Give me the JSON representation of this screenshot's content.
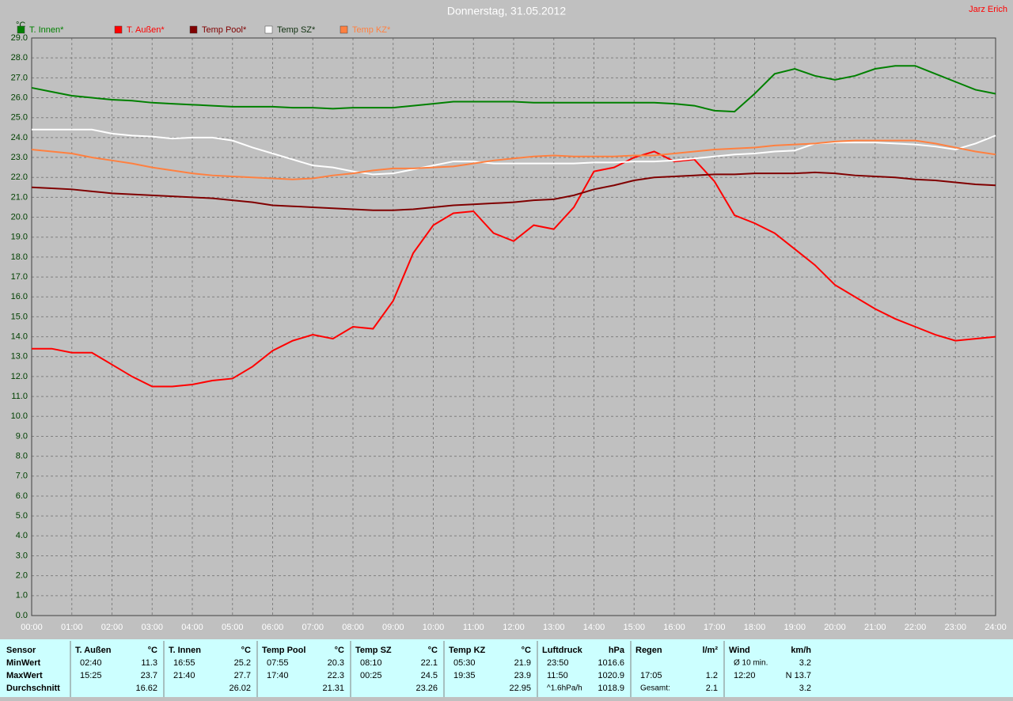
{
  "chart_data": {
    "type": "line",
    "title": "Donnerstag, 31.05.2012",
    "corner_text": "Jarz Erich",
    "y_label": "°C",
    "x": [
      0,
      0.5,
      1,
      1.5,
      2,
      2.5,
      3,
      3.5,
      4,
      4.5,
      5,
      5.5,
      6,
      6.5,
      7,
      7.5,
      8,
      8.5,
      9,
      9.5,
      10,
      10.5,
      11,
      11.5,
      12,
      12.5,
      13,
      13.5,
      14,
      14.5,
      15,
      15.5,
      16,
      16.5,
      17,
      17.5,
      18,
      18.5,
      19,
      19.5,
      20,
      20.5,
      21,
      21.5,
      22,
      22.5,
      23,
      23.5,
      24
    ],
    "series": [
      {
        "name": "T. Innen*",
        "color": "#008000",
        "values": [
          26.5,
          26.3,
          26.1,
          26.0,
          25.9,
          25.85,
          25.75,
          25.7,
          25.65,
          25.6,
          25.55,
          25.55,
          25.55,
          25.5,
          25.5,
          25.45,
          25.5,
          25.5,
          25.5,
          25.6,
          25.7,
          25.8,
          25.8,
          25.8,
          25.8,
          25.75,
          25.75,
          25.75,
          25.75,
          25.75,
          25.75,
          25.75,
          25.7,
          25.6,
          25.35,
          25.3,
          26.2,
          27.2,
          27.45,
          27.1,
          26.9,
          27.1,
          27.45,
          27.6,
          27.6,
          27.2,
          26.8,
          26.4,
          26.2
        ]
      },
      {
        "name": "T. Außen*",
        "color": "#ff0000",
        "values": [
          13.4,
          13.4,
          13.2,
          13.2,
          12.6,
          12.0,
          11.5,
          11.5,
          11.6,
          11.8,
          11.9,
          12.5,
          13.3,
          13.8,
          14.1,
          13.9,
          14.5,
          14.4,
          15.8,
          18.2,
          19.6,
          20.2,
          20.3,
          19.2,
          18.8,
          19.6,
          19.4,
          20.5,
          22.3,
          22.5,
          23.0,
          23.3,
          22.8,
          22.9,
          21.8,
          20.1,
          19.7,
          19.2,
          18.4,
          17.6,
          16.6,
          16.0,
          15.4,
          14.9,
          14.5,
          14.1,
          13.8,
          13.9,
          14.0
        ]
      },
      {
        "name": "Temp Pool*",
        "color": "#800000",
        "values": [
          21.5,
          21.45,
          21.4,
          21.3,
          21.2,
          21.15,
          21.1,
          21.05,
          21.0,
          20.95,
          20.85,
          20.75,
          20.6,
          20.55,
          20.5,
          20.45,
          20.4,
          20.35,
          20.35,
          20.4,
          20.5,
          20.6,
          20.65,
          20.7,
          20.75,
          20.85,
          20.9,
          21.1,
          21.4,
          21.6,
          21.85,
          22.0,
          22.05,
          22.1,
          22.15,
          22.15,
          22.2,
          22.2,
          22.2,
          22.25,
          22.2,
          22.1,
          22.05,
          22.0,
          21.9,
          21.85,
          21.75,
          21.65,
          21.6
        ]
      },
      {
        "name": "Temp SZ*",
        "color": "#ffffff",
        "values": [
          24.4,
          24.4,
          24.4,
          24.4,
          24.2,
          24.1,
          24.05,
          23.95,
          24.0,
          24.0,
          23.85,
          23.5,
          23.2,
          22.9,
          22.6,
          22.5,
          22.3,
          22.15,
          22.2,
          22.4,
          22.6,
          22.8,
          22.8,
          22.7,
          22.7,
          22.7,
          22.7,
          22.7,
          22.75,
          22.75,
          22.8,
          22.8,
          22.85,
          22.95,
          23.05,
          23.15,
          23.2,
          23.3,
          23.35,
          23.7,
          23.75,
          23.75,
          23.75,
          23.7,
          23.65,
          23.55,
          23.4,
          23.7,
          24.1
        ]
      },
      {
        "name": "Temp KZ*",
        "color": "#ff8040",
        "values": [
          23.4,
          23.3,
          23.2,
          23.0,
          22.85,
          22.7,
          22.5,
          22.35,
          22.2,
          22.1,
          22.05,
          22.0,
          21.95,
          21.9,
          21.95,
          22.1,
          22.2,
          22.35,
          22.45,
          22.45,
          22.5,
          22.55,
          22.7,
          22.85,
          22.95,
          23.05,
          23.1,
          23.05,
          23.05,
          23.05,
          23.1,
          23.1,
          23.2,
          23.3,
          23.4,
          23.45,
          23.5,
          23.6,
          23.65,
          23.7,
          23.8,
          23.85,
          23.85,
          23.85,
          23.85,
          23.7,
          23.5,
          23.3,
          23.15
        ]
      }
    ],
    "xlim": [
      0,
      24
    ],
    "ylim": [
      0,
      29
    ],
    "grid": true,
    "xticks": [
      {
        "value": 0,
        "label": "00:00"
      },
      {
        "value": 1,
        "label": "01:00"
      },
      {
        "value": 2,
        "label": "02:00"
      },
      {
        "value": 3,
        "label": "03:00"
      },
      {
        "value": 4,
        "label": "04:00"
      },
      {
        "value": 5,
        "label": "05:00"
      },
      {
        "value": 6,
        "label": "06:00"
      },
      {
        "value": 7,
        "label": "07:00"
      },
      {
        "value": 8,
        "label": "08:00"
      },
      {
        "value": 9,
        "label": "09:00"
      },
      {
        "value": 10,
        "label": "10:00"
      },
      {
        "value": 11,
        "label": "11:00"
      },
      {
        "value": 12,
        "label": "12:00"
      },
      {
        "value": 13,
        "label": "13:00"
      },
      {
        "value": 14,
        "label": "14:00"
      },
      {
        "value": 15,
        "label": "15:00"
      },
      {
        "value": 16,
        "label": "16:00"
      },
      {
        "value": 17,
        "label": "17:00"
      },
      {
        "value": 18,
        "label": "18:00"
      },
      {
        "value": 19,
        "label": "19:00"
      },
      {
        "value": 20,
        "label": "20:00"
      },
      {
        "value": 21,
        "label": "21:00"
      },
      {
        "value": 22,
        "label": "22:00"
      },
      {
        "value": 23,
        "label": "23:00"
      },
      {
        "value": 24,
        "label": "24:00"
      }
    ],
    "yticks": [
      {
        "value": 0,
        "label": "0.0"
      },
      {
        "value": 1,
        "label": "1.0"
      },
      {
        "value": 2,
        "label": "2.0"
      },
      {
        "value": 3,
        "label": "3.0"
      },
      {
        "value": 4,
        "label": "4.0"
      },
      {
        "value": 5,
        "label": "5.0"
      },
      {
        "value": 6,
        "label": "6.0"
      },
      {
        "value": 7,
        "label": "7.0"
      },
      {
        "value": 8,
        "label": "8.0"
      },
      {
        "value": 9,
        "label": "9.0"
      },
      {
        "value": 10,
        "label": "10.0"
      },
      {
        "value": 11,
        "label": "11.0"
      },
      {
        "value": 12,
        "label": "12.0"
      },
      {
        "value": 13,
        "label": "13.0"
      },
      {
        "value": 14,
        "label": "14.0"
      },
      {
        "value": 15,
        "label": "15.0"
      },
      {
        "value": 16,
        "label": "16.0"
      },
      {
        "value": 17,
        "label": "17.0"
      },
      {
        "value": 18,
        "label": "18.0"
      },
      {
        "value": 19,
        "label": "19.0"
      },
      {
        "value": 20,
        "label": "20.0"
      },
      {
        "value": 21,
        "label": "21.0"
      },
      {
        "value": 22,
        "label": "22.0"
      },
      {
        "value": 23,
        "label": "23.0"
      },
      {
        "value": 24,
        "label": "24.0"
      },
      {
        "value": 25,
        "label": "25.0"
      },
      {
        "value": 26,
        "label": "26.0"
      },
      {
        "value": 27,
        "label": "27.0"
      },
      {
        "value": 28,
        "label": "28.0"
      },
      {
        "value": 29,
        "label": "29.0"
      }
    ]
  },
  "table": {
    "header": "Sensor",
    "row_labels": [
      "MinWert",
      "MaxWert",
      "Durchschnitt"
    ],
    "groups": [
      {
        "header": "T. Außen",
        "unit": "°C",
        "rows": [
          [
            "02:40",
            "11.3"
          ],
          [
            "15:25",
            "23.7"
          ],
          [
            "16.62"
          ]
        ]
      },
      {
        "header": "T. Innen",
        "unit": "°C",
        "rows": [
          [
            "16:55",
            "25.2"
          ],
          [
            "21:40",
            "27.7"
          ],
          [
            "26.02"
          ]
        ]
      },
      {
        "header": "Temp Pool",
        "unit": "°C",
        "rows": [
          [
            "07:55",
            "20.3"
          ],
          [
            "17:40",
            "22.3"
          ],
          [
            "21.31"
          ]
        ]
      },
      {
        "header": "Temp SZ",
        "unit": "°C",
        "rows": [
          [
            "08:10",
            "22.1"
          ],
          [
            "00:25",
            "24.5"
          ],
          [
            "23.26"
          ]
        ]
      },
      {
        "header": "Temp KZ",
        "unit": "°C",
        "rows": [
          [
            "05:30",
            "21.9"
          ],
          [
            "19:35",
            "23.9"
          ],
          [
            "22.95"
          ]
        ]
      },
      {
        "header": "Luftdruck",
        "unit": "hPa",
        "rows": [
          [
            "23:50",
            "1016.6"
          ],
          [
            "11:50",
            "1020.9"
          ],
          [
            "^1.6hPa/h",
            "1018.9"
          ]
        ]
      },
      {
        "header": "Regen",
        "unit": "l/m²",
        "rows": [
          [],
          [
            "17:05",
            "1.2"
          ],
          [
            "Gesamt:",
            "2.1"
          ]
        ]
      },
      {
        "header": "Wind",
        "unit": "km/h",
        "rows": [
          [
            "Ø 10 min.",
            "3.2"
          ],
          [
            "12:20",
            "N 13.7"
          ],
          [
            "3.2"
          ]
        ]
      }
    ]
  }
}
